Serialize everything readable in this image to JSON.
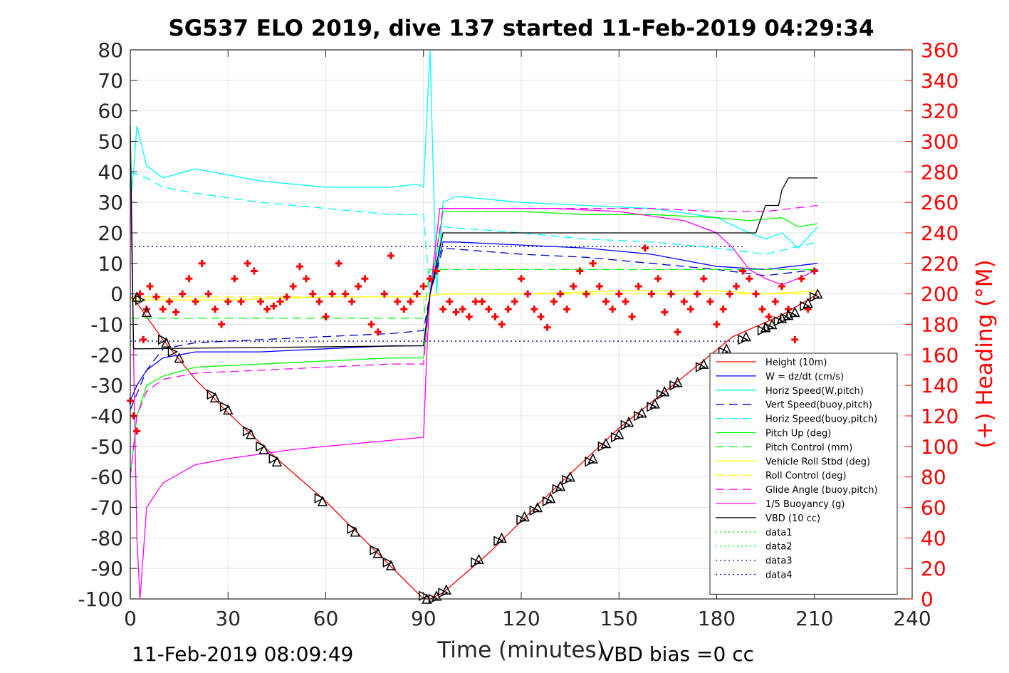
{
  "chart_data": {
    "type": "line",
    "title": "SG537 ELO 2019, dive 137 started 11-Feb-2019 04:29:34",
    "xlabel": "Time (minutes)",
    "ylabel": "",
    "y2label": "(+) Heading (°M)",
    "xlim": [
      0,
      240
    ],
    "ylim": [
      -100,
      80
    ],
    "y2lim": [
      0,
      360
    ],
    "x_ticks": [
      "0",
      "30",
      "60",
      "90",
      "120",
      "150",
      "180",
      "210",
      "240"
    ],
    "y_ticks": [
      "80",
      "70",
      "60",
      "50",
      "40",
      "30",
      "20",
      "10",
      "0",
      "-10",
      "-20",
      "-30",
      "-40",
      "-50",
      "-60",
      "-70",
      "-80",
      "-90",
      "-100"
    ],
    "y2_ticks": [
      "360",
      "340",
      "320",
      "300",
      "280",
      "260",
      "240",
      "220",
      "200",
      "180",
      "160",
      "140",
      "120",
      "100",
      "80",
      "60",
      "40",
      "20",
      "0"
    ],
    "grid": true,
    "legend_position": "lower-right",
    "footer_left": "11-Feb-2019 08:09:49",
    "footer_right": "VBD bias =0 cc",
    "series": [
      {
        "name": "Height (10m)",
        "color": "#ff0000",
        "style": "solid",
        "x": [
          0,
          2,
          10,
          20,
          30,
          45,
          60,
          75,
          90,
          92,
          96,
          110,
          130,
          150,
          170,
          185,
          200,
          211
        ],
        "y": [
          -1,
          -3,
          -15,
          -28,
          -39,
          -54,
          -68,
          -84,
          -100,
          -100,
          -98,
          -85,
          -64,
          -44,
          -27,
          -14,
          -7,
          0
        ]
      },
      {
        "name": "W = dz/dt (cm/s)",
        "color": "#0000ff",
        "style": "solid",
        "x": [
          0,
          2,
          5,
          10,
          20,
          40,
          60,
          80,
          90,
          92,
          96,
          100,
          120,
          140,
          160,
          180,
          195,
          211
        ],
        "y": [
          -35,
          -30,
          -25,
          -21,
          -19,
          -19,
          -18,
          -17,
          -17,
          0,
          17,
          17,
          16,
          15,
          13,
          9,
          8,
          10
        ]
      },
      {
        "name": "Horiz Speed(W,pitch)",
        "color": "#00ffff",
        "style": "solid",
        "x": [
          0,
          1,
          2,
          5,
          10,
          20,
          40,
          60,
          80,
          88,
          90,
          92,
          94,
          96,
          100,
          120,
          140,
          160,
          180,
          190,
          195,
          200,
          205,
          211
        ],
        "y": [
          30,
          40,
          55,
          42,
          38,
          41,
          37,
          35,
          35,
          36,
          35,
          80,
          0,
          30,
          32,
          30,
          29,
          28,
          25,
          20,
          18,
          20,
          15,
          22
        ]
      },
      {
        "name": "Vert Speed(buoy,pitch)",
        "color": "#0000cc",
        "style": "dashed",
        "x": [
          0,
          5,
          10,
          20,
          40,
          60,
          80,
          90,
          92,
          96,
          120,
          140,
          160,
          180,
          195,
          211
        ],
        "y": [
          -38,
          -25,
          -18,
          -16,
          -15,
          -14,
          -13,
          -12,
          0,
          15,
          13,
          12,
          10,
          8,
          6,
          8
        ]
      },
      {
        "name": "Horiz Speed(buoy,pitch)",
        "color": "#00ffff",
        "style": "dashed",
        "x": [
          0,
          5,
          10,
          20,
          40,
          60,
          80,
          90,
          92,
          96,
          120,
          140,
          160,
          180,
          195,
          211
        ],
        "y": [
          40,
          38,
          35,
          33,
          30,
          28,
          26,
          26,
          0,
          22,
          20,
          18,
          17,
          15,
          13,
          17
        ]
      },
      {
        "name": "Pitch Up (deg)",
        "color": "#00ff00",
        "style": "solid",
        "x": [
          0,
          2,
          5,
          10,
          20,
          40,
          60,
          80,
          90,
          92,
          96,
          120,
          140,
          160,
          180,
          190,
          200,
          205,
          211
        ],
        "y": [
          -60,
          -40,
          -30,
          -27,
          -24,
          -23,
          -22,
          -21,
          -21,
          0,
          27,
          27,
          26,
          26,
          25,
          24,
          25,
          22,
          23
        ]
      },
      {
        "name": "Pitch Control (mm)",
        "color": "#00ff00",
        "style": "dashed",
        "x": [
          0,
          3,
          10,
          30,
          60,
          90,
          91,
          92,
          120,
          150,
          180,
          190,
          211
        ],
        "y": [
          -8,
          -8,
          -8,
          -8,
          -8,
          -8,
          0,
          8,
          8,
          8,
          8,
          8,
          8
        ]
      },
      {
        "name": "Vehicle Roll Stbd (deg)",
        "color": "#ffff00",
        "style": "solid",
        "x": [
          0,
          10,
          30,
          60,
          90,
          96,
          120,
          150,
          180,
          195,
          211
        ],
        "y": [
          -2,
          -2,
          -2,
          -1,
          -1,
          0,
          0,
          1,
          1,
          0,
          1
        ]
      },
      {
        "name": "Roll Control (deg)",
        "color": "#ffff00",
        "style": "dashed",
        "x": [
          0,
          10,
          30,
          60,
          90,
          96,
          120,
          150,
          180,
          195,
          211
        ],
        "y": [
          -1,
          -1,
          -1,
          -1,
          -1,
          0,
          0,
          0,
          0,
          0,
          0
        ]
      },
      {
        "name": "Glide Angle (buoy,pitch)",
        "color": "#ff00ff",
        "style": "dashed",
        "x": [
          0,
          2,
          5,
          10,
          20,
          40,
          60,
          80,
          90,
          92,
          96,
          120,
          140,
          160,
          180,
          195,
          211
        ],
        "y": [
          -60,
          -40,
          -32,
          -28,
          -26,
          -25,
          -24,
          -23,
          -23,
          0,
          28,
          28,
          28,
          28,
          27,
          27,
          29
        ]
      },
      {
        "name": "1/5 Buoyancy (g)",
        "color": "#ff00ff",
        "style": "solid",
        "x": [
          0,
          2,
          3,
          5,
          10,
          20,
          30,
          50,
          70,
          90,
          91,
          92,
          95,
          110,
          130,
          150,
          170,
          180,
          185,
          190,
          195,
          200,
          205,
          211
        ],
        "y": [
          40,
          -80,
          -100,
          -70,
          -62,
          -56,
          -54,
          -51,
          -49,
          -47,
          -20,
          0,
          28,
          28,
          28,
          27,
          24,
          20,
          15,
          8,
          5,
          3,
          5,
          8
        ]
      },
      {
        "name": "VBD (10 cc)",
        "color": "#000000",
        "style": "solid",
        "x": [
          0,
          1,
          2,
          90,
          92,
          96,
          100,
          150,
          185,
          192,
          195,
          199,
          200,
          202,
          205,
          211
        ],
        "y": [
          55,
          -18,
          -18,
          -17,
          0,
          20,
          20,
          20,
          20,
          20,
          29,
          29,
          34,
          38,
          38,
          38
        ]
      },
      {
        "name": "data1",
        "color": "#00ff00",
        "style": "dotted",
        "x": [],
        "y": []
      },
      {
        "name": "data2",
        "color": "#00ff00",
        "style": "dotted",
        "x": [],
        "y": []
      },
      {
        "name": "data3",
        "color": "#000080",
        "style": "dotted",
        "x": [],
        "y": []
      },
      {
        "name": "data4",
        "color": "#0000ff",
        "style": "dotted",
        "x": [],
        "y": []
      }
    ],
    "reference_lines": [
      {
        "color": "#000080",
        "style": "dotted",
        "x": [
          0,
          188
        ],
        "y": [
          15.5,
          15.5
        ]
      },
      {
        "color": "#000080",
        "style": "dotted",
        "x": [
          0,
          188
        ],
        "y": [
          -15.5,
          -15.5
        ]
      }
    ],
    "heading_points": {
      "color": "#ff0000",
      "axis": "right",
      "x": [
        0,
        1,
        2,
        3,
        4,
        5,
        6,
        8,
        10,
        12,
        14,
        16,
        18,
        20,
        22,
        24,
        26,
        28,
        30,
        32,
        34,
        36,
        38,
        40,
        42,
        44,
        46,
        48,
        50,
        52,
        54,
        56,
        58,
        60,
        62,
        64,
        66,
        68,
        70,
        72,
        74,
        76,
        78,
        80,
        82,
        84,
        86,
        88,
        90,
        92,
        94,
        96,
        98,
        100,
        102,
        104,
        106,
        108,
        110,
        112,
        114,
        116,
        118,
        120,
        122,
        124,
        126,
        128,
        130,
        132,
        134,
        136,
        138,
        140,
        142,
        144,
        146,
        148,
        150,
        152,
        154,
        156,
        158,
        160,
        162,
        164,
        166,
        168,
        170,
        172,
        174,
        176,
        178,
        180,
        182,
        184,
        186,
        188,
        190,
        192,
        194,
        196,
        198,
        200,
        202,
        204,
        206,
        208,
        210
      ],
      "y": [
        130,
        120,
        110,
        200,
        170,
        190,
        205,
        198,
        190,
        195,
        188,
        200,
        210,
        195,
        220,
        200,
        190,
        180,
        195,
        210,
        195,
        220,
        215,
        195,
        190,
        192,
        195,
        198,
        205,
        218,
        210,
        200,
        195,
        185,
        200,
        220,
        200,
        195,
        205,
        210,
        180,
        175,
        200,
        225,
        195,
        190,
        195,
        200,
        205,
        210,
        215,
        190,
        195,
        188,
        190,
        185,
        195,
        195,
        190,
        185,
        180,
        190,
        195,
        210,
        200,
        190,
        185,
        178,
        195,
        200,
        190,
        205,
        215,
        200,
        220,
        205,
        195,
        190,
        200,
        195,
        185,
        205,
        230,
        200,
        210,
        188,
        200,
        175,
        195,
        190,
        200,
        210,
        195,
        180,
        190,
        200,
        205,
        215,
        210,
        200,
        190,
        185,
        195,
        205,
        190,
        170,
        210,
        190,
        215
      ]
    },
    "markers": {
      "color": "#000000",
      "x": [
        2,
        3,
        5,
        10,
        11,
        13,
        15,
        25,
        26,
        29,
        30,
        36,
        37,
        40,
        41,
        44,
        45,
        58,
        59,
        68,
        69,
        75,
        76,
        79,
        80,
        90,
        91,
        93,
        94,
        96,
        97,
        106,
        107,
        113,
        114,
        120,
        121,
        124,
        125,
        128,
        129,
        131,
        132,
        134,
        135,
        141,
        142,
        145,
        146,
        149,
        150,
        152,
        153,
        156,
        157,
        160,
        161,
        163,
        164,
        167,
        168,
        175,
        176,
        182,
        183,
        188,
        189,
        194,
        195,
        196,
        197,
        199,
        200,
        201,
        202,
        203,
        204,
        207,
        208,
        210,
        211
      ],
      "y": [
        -1,
        -2,
        -6,
        -15,
        -16,
        -19,
        -21,
        -33,
        -34,
        -37,
        -38,
        -45,
        -46,
        -50,
        -51,
        -54,
        -55,
        -67,
        -68,
        -77,
        -78,
        -84,
        -85,
        -88,
        -89,
        -99,
        -100,
        -100,
        -99,
        -98,
        -97,
        -88,
        -87,
        -81,
        -80,
        -74,
        -73,
        -71,
        -70,
        -68,
        -67,
        -64,
        -63,
        -61,
        -60,
        -55,
        -54,
        -50,
        -49,
        -47,
        -46,
        -43,
        -42,
        -40,
        -39,
        -37,
        -36,
        -33,
        -32,
        -30,
        -29,
        -24,
        -23,
        -19,
        -18,
        -15,
        -14,
        -12,
        -11,
        -11,
        -10,
        -9,
        -8,
        -8,
        -7,
        -7,
        -6,
        -4,
        -3,
        -1,
        0
      ]
    }
  }
}
